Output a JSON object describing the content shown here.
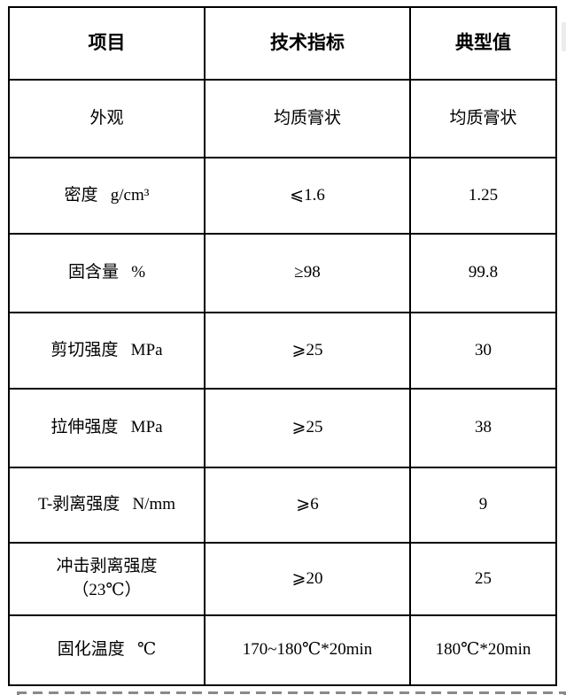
{
  "table": {
    "header": {
      "item": "项目",
      "spec": "技术指标",
      "typical": "典型值"
    },
    "rows": [
      {
        "item": "外观",
        "spec": "均质膏状",
        "typical": "均质膏状"
      },
      {
        "item": "密度   g/cm³",
        "spec": "⩽1.6",
        "typical": "1.25"
      },
      {
        "item": "固含量   %",
        "spec": "≥98",
        "typical": "99.8"
      },
      {
        "item": "剪切强度   MPa",
        "spec": "⩾25",
        "typical": "30"
      },
      {
        "item": "拉伸强度   MPa",
        "spec": "⩾25",
        "typical": "38"
      },
      {
        "item": "T-剥离强度   N/mm",
        "spec": "⩾6",
        "typical": "9"
      },
      {
        "item": "冲击剥离强度\n（23℃）",
        "spec": "⩾20",
        "typical": "25"
      },
      {
        "item": "固化温度   ℃",
        "spec": "170~180℃*20min",
        "typical": "180℃*20min"
      }
    ]
  }
}
